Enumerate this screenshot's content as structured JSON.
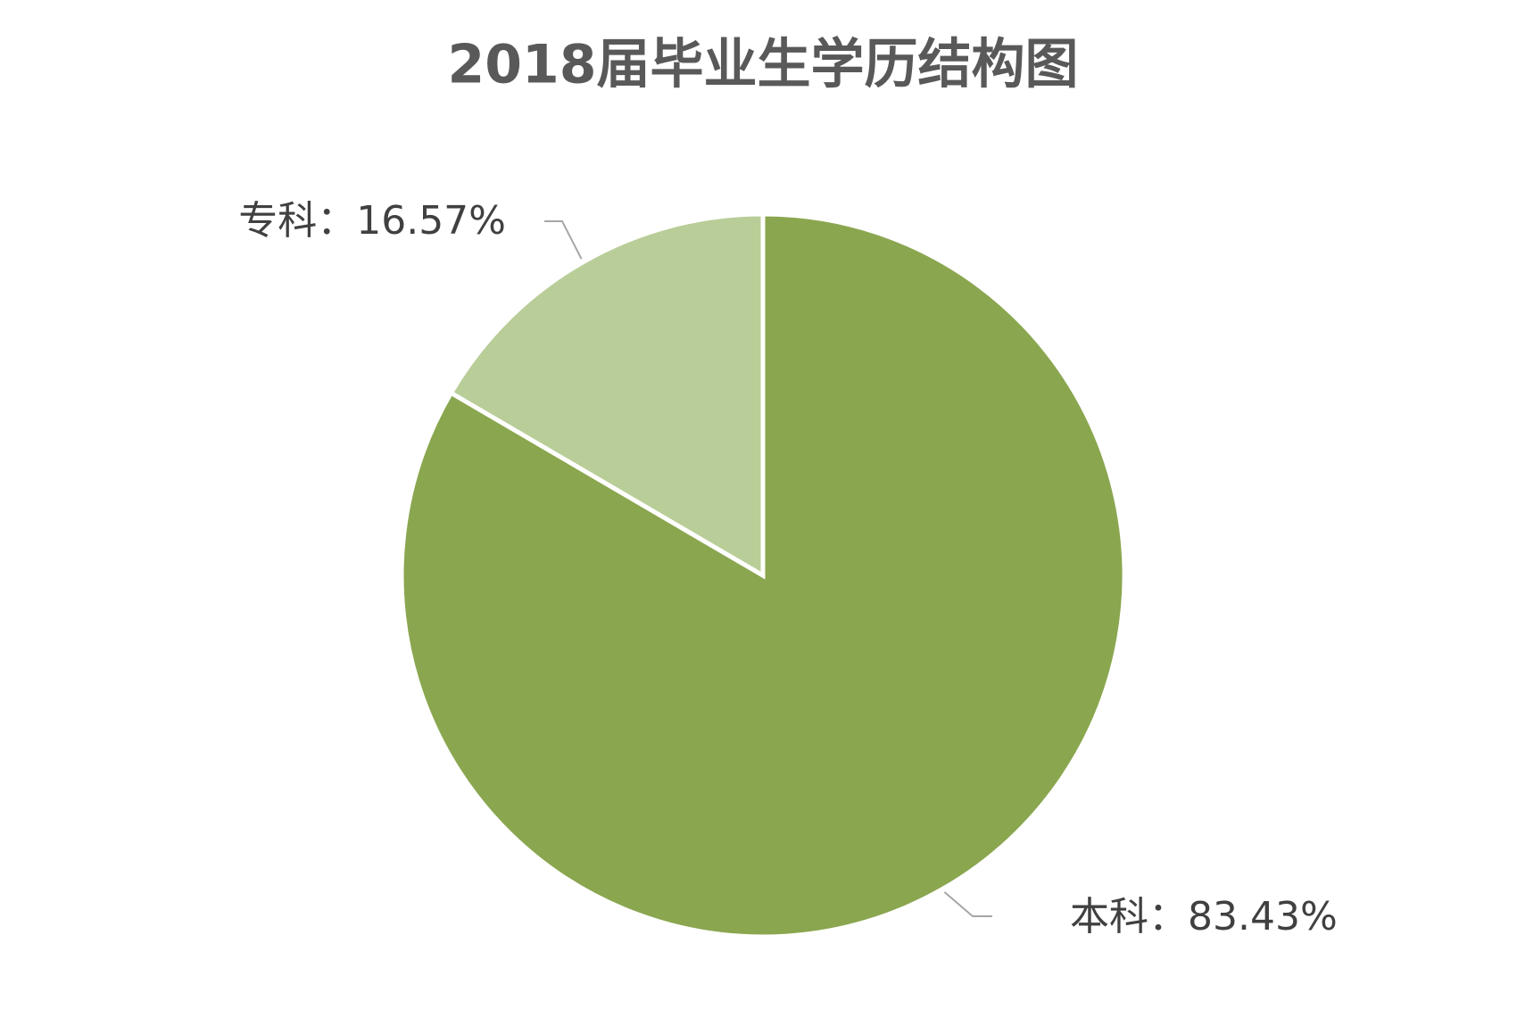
{
  "chart_data": {
    "type": "pie",
    "title": "2018届毕业生学历结构图",
    "values": [
      83.43,
      16.57
    ],
    "value_labels": [
      "本科：83.43%",
      "专科：16.57%"
    ],
    "colors": [
      "#8aa64f",
      "#b9cd98"
    ]
  }
}
